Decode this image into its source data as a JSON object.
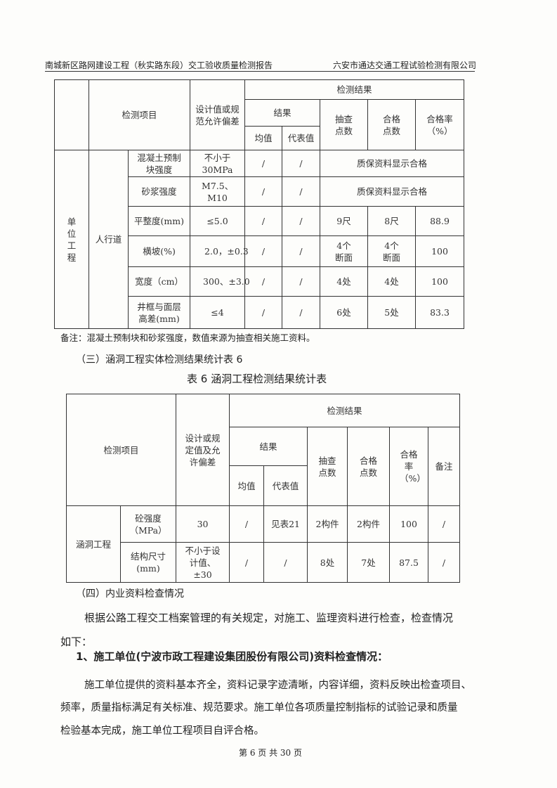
{
  "header": {
    "left": "南城新区路网建设工程（秋实路东段）交工验收质量检测报告",
    "right": "六安市通达交通工程试验检测有限公司"
  },
  "table5": {
    "h_item": "检测项目",
    "h_design": "设计值或规范允许偏差",
    "h_results": "检测结果",
    "h_result": "结果",
    "h_mean": "均值",
    "h_rep": "代表值",
    "h_sample": "抽查点数",
    "h_pass": "合格点数",
    "h_rate": "合格率（%）",
    "unit": "单位工程",
    "group": "人行道",
    "rows": [
      {
        "item": "混凝土预制块强度",
        "design": "不小于30MPa",
        "mean": "/",
        "rep": "/",
        "merged": "质保资料显示合格"
      },
      {
        "item": "砂浆强度",
        "design": "M7.5、M10",
        "mean": "/",
        "rep": "/",
        "merged": "质保资料显示合格"
      },
      {
        "item": "平整度(mm)",
        "design": "≤5.0",
        "mean": "/",
        "rep": "/",
        "sample": "9尺",
        "pass": "8尺",
        "rate": "88.9"
      },
      {
        "item": "横坡(%)",
        "design": "2.0，±0.3",
        "mean": "/",
        "rep": "/",
        "sample": "4个断面",
        "pass": "4个断面",
        "rate": "100"
      },
      {
        "item": "宽度（cm）",
        "design": "300、±3.0",
        "mean": "/",
        "rep": "/",
        "sample": "4处",
        "pass": "4处",
        "rate": "100"
      },
      {
        "item": "井框与面层高差(mm)",
        "design": "≤4",
        "mean": "/",
        "rep": "/",
        "sample": "6处",
        "pass": "5处",
        "rate": "83.3"
      }
    ],
    "note": "备注：混凝土预制块和砂浆强度，数值来源为抽查相关施工资料。"
  },
  "section3": "（三）涵洞工程实体检测结果统计表 6",
  "table6": {
    "caption": "表 6   涵洞工程检测结果统计表",
    "h_item": "检测项目",
    "h_design": "设计或规定值及允许偏差",
    "h_results": "检测结果",
    "h_result": "结果",
    "h_mean": "均值",
    "h_rep": "代表值",
    "h_sample": "抽查点数",
    "h_pass": "合格点数",
    "h_rate": "合格率（%）",
    "h_note": "备注",
    "group": "涵洞工程",
    "rows": [
      {
        "item": "砼强度（MPa）",
        "design": "30",
        "mean": "/",
        "rep": "见表21",
        "sample": "2构件",
        "pass": "2构件",
        "rate": "100",
        "note": "/"
      },
      {
        "item": "结构尺寸(mm)",
        "design": "不小于设计值、±30",
        "mean": "/",
        "rep": "/",
        "sample": "8处",
        "pass": "7处",
        "rate": "87.5",
        "note": "/"
      }
    ]
  },
  "section4": "（四）内业资料检查情况",
  "para1a": "根据公路工程交工档案管理的有关规定，对施工、监理资料进行检查，检查情况",
  "para1b": "如下：",
  "sub1": "1、施工单位(宁波市政工程建设集团股份有限公司)资料检查情况：",
  "para2a": "施工单位提供的资料基本齐全，资料记录字迹清晰，内容详细，资料反映出检查项目、",
  "para2b": "频率，质量指标满足有关标准、规范要求。施工单位各项质量控制指标的试验记录和质量",
  "para2c": "检验基本完成，施工单位工程项目自评合格。",
  "footer": "第 6 页 共 30 页"
}
